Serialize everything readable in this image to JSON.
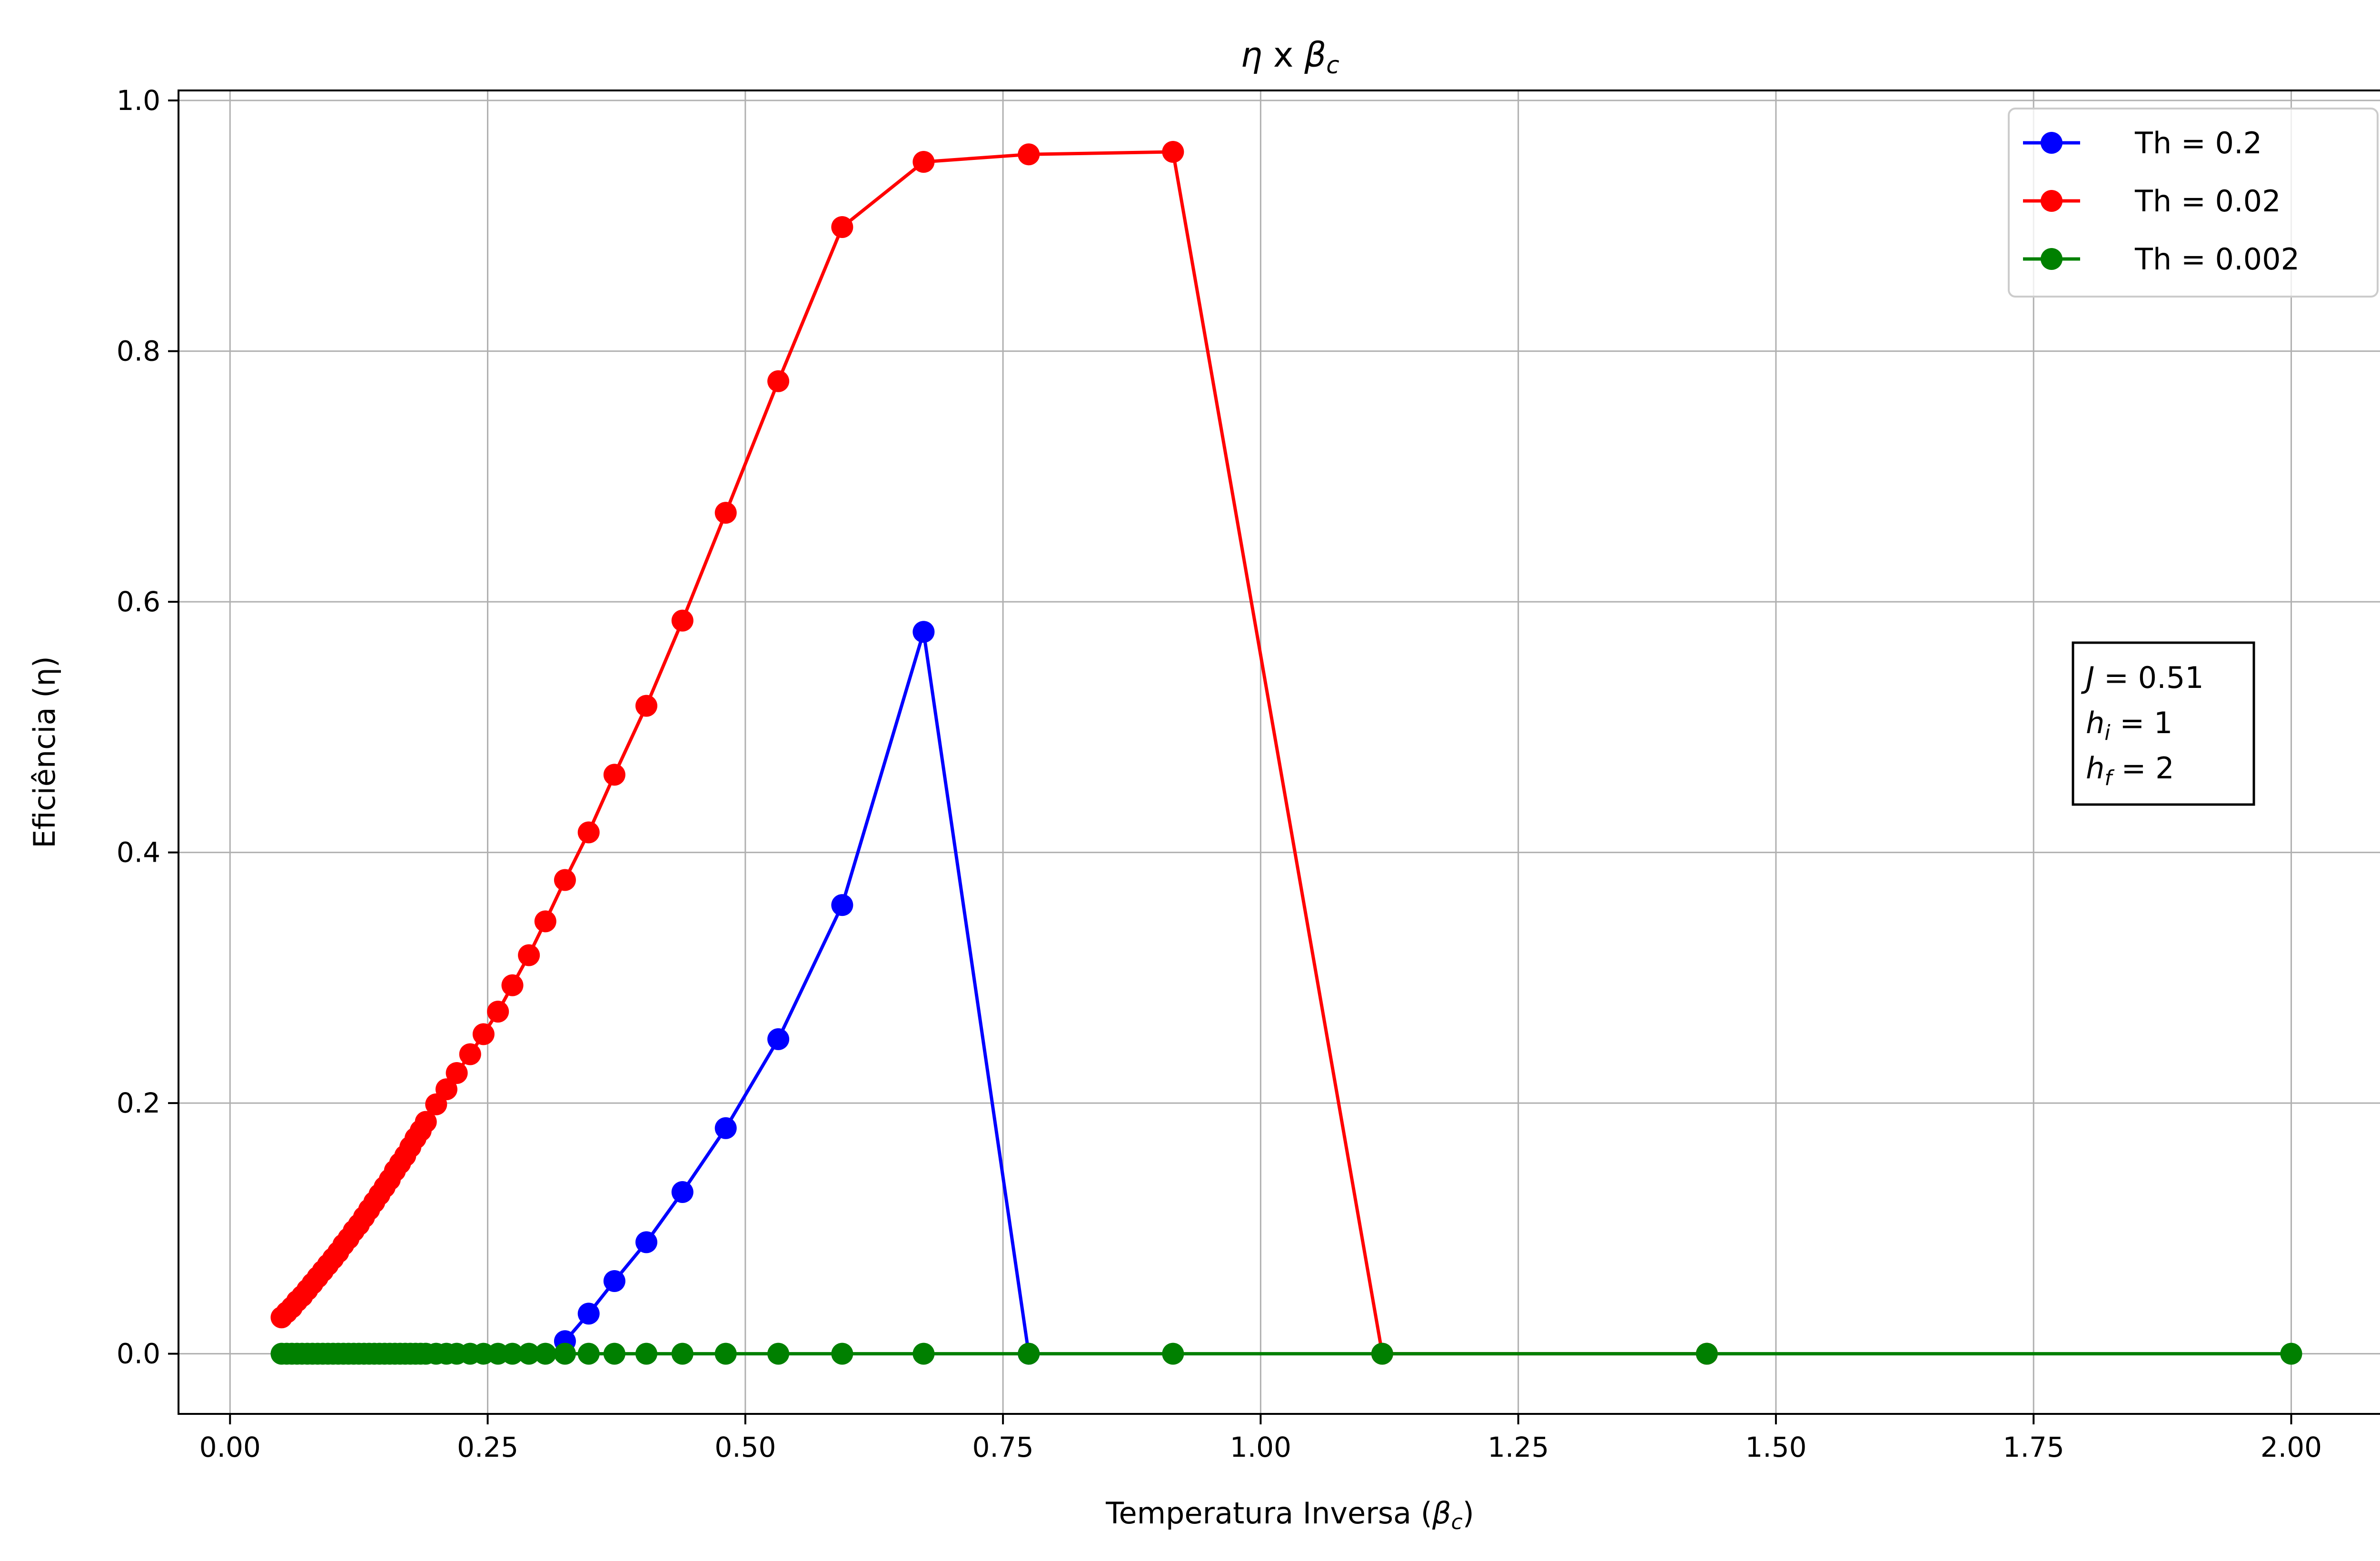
{
  "chart_data": {
    "type": "line",
    "title": "η x βc",
    "title_parts": {
      "eta": "η",
      "x": " x ",
      "beta": "β",
      "sub": "c"
    },
    "xlabel": "Temperatura Inversa (βc)",
    "xlabel_parts": {
      "main": "Temperatura Inversa (",
      "beta": "β",
      "sub": "c",
      "close": ")"
    },
    "ylabel": "Eficiência (η)",
    "xlim": [
      -0.05,
      2.1
    ],
    "ylim": [
      -0.048,
      1.008
    ],
    "xticks": [
      0.0,
      0.25,
      0.5,
      0.75,
      1.0,
      1.25,
      1.5,
      1.75,
      2.0
    ],
    "xtick_labels": [
      "0.00",
      "0.25",
      "0.50",
      "0.75",
      "1.00",
      "1.25",
      "1.50",
      "1.75",
      "2.00"
    ],
    "yticks": [
      0.0,
      0.2,
      0.4,
      0.6,
      0.8,
      1.0
    ],
    "ytick_labels": [
      "0.0",
      "0.2",
      "0.4",
      "0.6",
      "0.8",
      "1.0"
    ],
    "grid": true,
    "legend_position": "top-right",
    "series": [
      {
        "name": "Th = 0.2",
        "color": "#0000ff",
        "x": [
          0.325,
          0.348,
          0.373,
          0.404,
          0.439,
          0.481,
          0.532,
          0.594,
          0.673,
          0.775
        ],
        "y": [
          0.01,
          0.032,
          0.058,
          0.089,
          0.129,
          0.18,
          0.251,
          0.358,
          0.576,
          0.0
        ]
      },
      {
        "name": "Th = 0.02",
        "color": "#ff0000",
        "x": [
          0.05,
          0.055,
          0.06,
          0.065,
          0.07,
          0.075,
          0.08,
          0.085,
          0.09,
          0.095,
          0.1,
          0.105,
          0.11,
          0.115,
          0.12,
          0.125,
          0.13,
          0.135,
          0.14,
          0.145,
          0.15,
          0.155,
          0.16,
          0.165,
          0.17,
          0.175,
          0.18,
          0.185,
          0.19,
          0.2,
          0.21,
          0.22,
          0.233,
          0.246,
          0.26,
          0.274,
          0.29,
          0.306,
          0.325,
          0.348,
          0.373,
          0.404,
          0.439,
          0.481,
          0.532,
          0.594,
          0.673,
          0.775,
          0.915,
          1.118,
          1.433
        ],
        "y": [
          0.029,
          0.033,
          0.037,
          0.042,
          0.046,
          0.051,
          0.056,
          0.061,
          0.066,
          0.071,
          0.076,
          0.081,
          0.087,
          0.092,
          0.098,
          0.103,
          0.109,
          0.115,
          0.121,
          0.127,
          0.133,
          0.139,
          0.146,
          0.152,
          0.158,
          0.165,
          0.172,
          0.178,
          0.185,
          0.199,
          0.211,
          0.224,
          0.239,
          0.255,
          0.273,
          0.294,
          0.318,
          0.345,
          0.378,
          0.416,
          0.462,
          0.517,
          0.585,
          0.671,
          0.776,
          0.899,
          0.951,
          0.957,
          0.959,
          0.0,
          0.0
        ],
        "y_note": ""
      },
      {
        "name": "Th = 0.002",
        "color": "#008000",
        "x": [
          0.05,
          0.055,
          0.06,
          0.065,
          0.07,
          0.075,
          0.08,
          0.085,
          0.09,
          0.095,
          0.1,
          0.105,
          0.11,
          0.115,
          0.12,
          0.125,
          0.13,
          0.135,
          0.14,
          0.145,
          0.15,
          0.155,
          0.16,
          0.165,
          0.17,
          0.175,
          0.18,
          0.185,
          0.19,
          0.2,
          0.21,
          0.22,
          0.233,
          0.246,
          0.26,
          0.274,
          0.29,
          0.306,
          0.325,
          0.348,
          0.373,
          0.404,
          0.439,
          0.481,
          0.532,
          0.594,
          0.673,
          0.775,
          0.915,
          1.118,
          1.433,
          2.0
        ],
        "y": [
          0,
          0,
          0,
          0,
          0,
          0,
          0,
          0,
          0,
          0,
          0,
          0,
          0,
          0,
          0,
          0,
          0,
          0,
          0,
          0,
          0,
          0,
          0,
          0,
          0,
          0,
          0,
          0,
          0,
          0,
          0,
          0,
          0,
          0,
          0,
          0,
          0,
          0,
          0,
          0,
          0,
          0,
          0,
          0,
          0,
          0,
          0,
          0,
          0,
          0,
          0,
          0
        ]
      }
    ],
    "annotation": {
      "lines": [
        {
          "var": "J",
          "sub": "",
          "eq": " = 0.51"
        },
        {
          "var": "h",
          "sub": "i",
          "eq": " = 1"
        },
        {
          "var": "h",
          "sub": "f",
          "eq": " = 2"
        }
      ],
      "position": "right-middle"
    },
    "styles": {
      "grid_color": "#b0b0b0",
      "axis_color": "#000000"
    }
  }
}
